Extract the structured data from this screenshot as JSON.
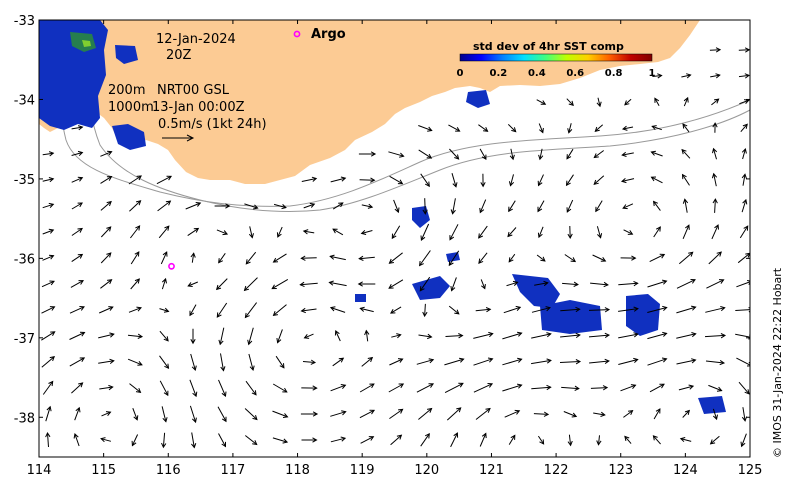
{
  "map": {
    "lon_range": [
      114,
      125
    ],
    "lat_range": [
      -38.5,
      -33
    ],
    "x_ticks": [
      "114",
      "115",
      "116",
      "117",
      "118",
      "119",
      "120",
      "121",
      "122",
      "123",
      "124",
      "125"
    ],
    "y_ticks": [
      "-33",
      "-34",
      "-35",
      "-36",
      "-37",
      "-38"
    ],
    "land_color": "#fccb94",
    "ocean_color": "#ffffff"
  },
  "annotations": {
    "date": "12-Jan-2024",
    "hour": "20Z",
    "isobath_1": "200m",
    "isobath_2": "1000m",
    "current_source": "NRT00 GSL",
    "current_time": "13-Jan 00:00Z",
    "scale_label": "0.5m/s (1kt 24h)"
  },
  "argo": {
    "label": "Argo",
    "color": "#ff00ff",
    "floats": [
      {
        "lon": 116.05,
        "lat": -36.1
      }
    ]
  },
  "colorbar": {
    "title": "std dev of 4hr SST comp",
    "ticks": [
      "0",
      "0.2",
      "0.4",
      "0.6",
      "0.8",
      "1"
    ],
    "colors": [
      "#00008b",
      "#0000ff",
      "#0080ff",
      "#00e0ff",
      "#40ff80",
      "#c0ff00",
      "#ffd000",
      "#ff6000",
      "#c00000",
      "#800000"
    ]
  },
  "credit": "© IMOS 31-Jan-2024 22:22 Hobart"
}
